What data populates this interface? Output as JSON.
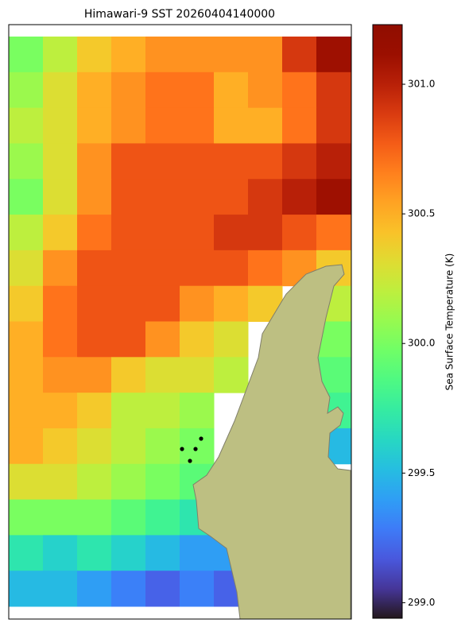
{
  "chart_data": {
    "type": "heatmap",
    "title": "Himawari-9 SST 20260404140000",
    "colorbar_label": "Sea Surface Temperature (K)",
    "colormap": "turbo",
    "clim": [
      298.94,
      301.23
    ],
    "cticks": [
      {
        "value": 299,
        "label": "299.0"
      },
      {
        "value": 299.5,
        "label": "299.5"
      },
      {
        "value": 300,
        "label": "300.0"
      },
      {
        "value": 300.5,
        "label": "300.5"
      },
      {
        "value": 301,
        "label": "301.0"
      }
    ],
    "values": [
      [
        300.0,
        300.2,
        300.4,
        300.5,
        300.6,
        300.6,
        300.6,
        300.6,
        300.9,
        301.1
      ],
      [
        300.1,
        300.3,
        300.5,
        300.6,
        300.7,
        300.7,
        300.5,
        300.6,
        300.7,
        300.9
      ],
      [
        300.2,
        300.3,
        300.5,
        300.6,
        300.7,
        300.7,
        300.5,
        300.5,
        300.7,
        300.9
      ],
      [
        300.1,
        300.3,
        300.6,
        300.8,
        300.8,
        300.8,
        300.8,
        300.8,
        300.9,
        301.0
      ],
      [
        300.0,
        300.3,
        300.6,
        300.8,
        300.8,
        300.8,
        300.8,
        300.9,
        301.0,
        301.1
      ],
      [
        300.2,
        300.4,
        300.7,
        300.8,
        300.8,
        300.8,
        300.9,
        300.9,
        300.8,
        300.7
      ],
      [
        300.3,
        300.6,
        300.8,
        300.8,
        300.8,
        300.8,
        300.8,
        300.7,
        300.6,
        300.4
      ],
      [
        300.4,
        300.7,
        300.8,
        300.8,
        300.8,
        300.6,
        300.5,
        300.4,
        null,
        300.2
      ],
      [
        300.5,
        300.7,
        300.8,
        300.8,
        300.6,
        300.4,
        300.3,
        null,
        null,
        300.0
      ],
      [
        300.5,
        300.6,
        300.6,
        300.4,
        300.3,
        300.3,
        300.2,
        null,
        null,
        299.9
      ],
      [
        300.5,
        300.5,
        300.4,
        300.2,
        300.2,
        300.1,
        null,
        null,
        null,
        299.8
      ],
      [
        300.5,
        300.4,
        300.3,
        300.2,
        300.1,
        300.0,
        null,
        null,
        null,
        299.5
      ],
      [
        300.3,
        300.3,
        300.2,
        300.1,
        300.0,
        299.9,
        null,
        null,
        null,
        null
      ],
      [
        300.0,
        300.0,
        300.0,
        299.9,
        299.8,
        299.7,
        null,
        null,
        null,
        null
      ],
      [
        299.7,
        299.6,
        299.7,
        299.6,
        299.5,
        299.4,
        299.4,
        null,
        null,
        null
      ],
      [
        299.5,
        299.5,
        299.4,
        299.3,
        299.2,
        299.3,
        299.2,
        null,
        null,
        null
      ]
    ]
  }
}
